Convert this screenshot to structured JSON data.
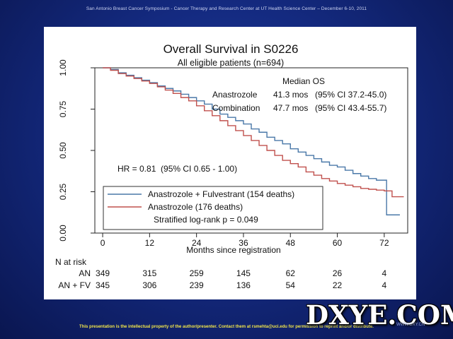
{
  "slide": {
    "header": "San Antonio Breast Cancer Symposium - Cancer Therapy and Research Center at UT Health Science Center – December 6-10, 2011",
    "footer": "This presentation is the intellectual property of the author/presenter. Contact them at rsmehta@uci.edu for permission to reprint and/or distribute.",
    "watermark": "DXYE.COM",
    "watermark_url": "WWW.DXY.CN"
  },
  "chart_data": {
    "type": "line",
    "title": "Overall Survival in S0226",
    "subtitle": "All eligible patients (n=694)",
    "xlabel": "Months since registration",
    "ylabel": "",
    "xlim": [
      -2,
      78
    ],
    "ylim": [
      0,
      1.0
    ],
    "x_ticks": [
      0,
      12,
      24,
      36,
      48,
      60,
      72
    ],
    "y_ticks": [
      0.0,
      0.25,
      0.5,
      0.75,
      1.0
    ],
    "y_tick_labels": [
      "0.00",
      "0.25",
      "0.50",
      "0.75",
      "1.00"
    ],
    "grid": false,
    "series": [
      {
        "name": "Anastrozole + Fulvestrant (154 deaths)",
        "color": "#4a78a8",
        "step": true,
        "points": [
          [
            0,
            1.0
          ],
          [
            2,
            0.99
          ],
          [
            4,
            0.97
          ],
          [
            6,
            0.955
          ],
          [
            8,
            0.94
          ],
          [
            10,
            0.925
          ],
          [
            12,
            0.91
          ],
          [
            14,
            0.89
          ],
          [
            16,
            0.875
          ],
          [
            18,
            0.86
          ],
          [
            20,
            0.84
          ],
          [
            22,
            0.82
          ],
          [
            24,
            0.8
          ],
          [
            26,
            0.78
          ],
          [
            28,
            0.75
          ],
          [
            30,
            0.72
          ],
          [
            32,
            0.7
          ],
          [
            34,
            0.68
          ],
          [
            36,
            0.66
          ],
          [
            38,
            0.63
          ],
          [
            40,
            0.61
          ],
          [
            42,
            0.58
          ],
          [
            44,
            0.56
          ],
          [
            46,
            0.54
          ],
          [
            48,
            0.51
          ],
          [
            50,
            0.49
          ],
          [
            52,
            0.47
          ],
          [
            54,
            0.45
          ],
          [
            56,
            0.43
          ],
          [
            58,
            0.41
          ],
          [
            60,
            0.4
          ],
          [
            62,
            0.38
          ],
          [
            64,
            0.36
          ],
          [
            66,
            0.345
          ],
          [
            68,
            0.33
          ],
          [
            70,
            0.32
          ],
          [
            72,
            0.32
          ],
          [
            72.6,
            0.11
          ],
          [
            76,
            0.11
          ]
        ]
      },
      {
        "name": "Anastrozole (176 deaths)",
        "color": "#c0504d",
        "step": true,
        "points": [
          [
            0,
            1.0
          ],
          [
            2,
            0.985
          ],
          [
            4,
            0.965
          ],
          [
            6,
            0.95
          ],
          [
            8,
            0.935
          ],
          [
            10,
            0.92
          ],
          [
            12,
            0.905
          ],
          [
            14,
            0.885
          ],
          [
            16,
            0.865
          ],
          [
            18,
            0.845
          ],
          [
            20,
            0.82
          ],
          [
            22,
            0.8
          ],
          [
            24,
            0.77
          ],
          [
            26,
            0.74
          ],
          [
            28,
            0.71
          ],
          [
            30,
            0.68
          ],
          [
            32,
            0.65
          ],
          [
            34,
            0.62
          ],
          [
            36,
            0.59
          ],
          [
            38,
            0.56
          ],
          [
            40,
            0.53
          ],
          [
            42,
            0.5
          ],
          [
            44,
            0.47
          ],
          [
            46,
            0.44
          ],
          [
            48,
            0.42
          ],
          [
            50,
            0.4
          ],
          [
            52,
            0.37
          ],
          [
            54,
            0.35
          ],
          [
            56,
            0.33
          ],
          [
            58,
            0.315
          ],
          [
            60,
            0.3
          ],
          [
            62,
            0.29
          ],
          [
            64,
            0.28
          ],
          [
            66,
            0.27
          ],
          [
            68,
            0.265
          ],
          [
            70,
            0.26
          ],
          [
            72,
            0.255
          ],
          [
            74,
            0.22
          ],
          [
            77,
            0.22
          ]
        ]
      }
    ],
    "median_os": {
      "heading": "Median OS",
      "rows": [
        {
          "arm": "Anastrozole",
          "value": "41.3 mos",
          "ci": "(95% CI 37.2-45.0)"
        },
        {
          "arm": "Combination",
          "value": "47.7 mos",
          "ci": "(95% CI 43.4-55.7)"
        }
      ]
    },
    "hr_text": "HR = 0.81  (95% CI 0.65 - 1.00)",
    "legend": {
      "position": "bottom-left",
      "entries": [
        {
          "label": "Anastrozole + Fulvestrant (154 deaths)",
          "color": "#4a78a8"
        },
        {
          "label": "Anastrozole (176 deaths)",
          "color": "#c0504d"
        }
      ],
      "note": "Stratified log-rank p = 0.049"
    },
    "risk_table": {
      "heading": "N at risk",
      "rows": [
        {
          "label": "AN",
          "values": [
            "349",
            "315",
            "259",
            "145",
            "62",
            "26",
            "4"
          ]
        },
        {
          "label": "AN + FV",
          "values": [
            "345",
            "306",
            "239",
            "136",
            "54",
            "22",
            "4"
          ]
        }
      ]
    }
  }
}
